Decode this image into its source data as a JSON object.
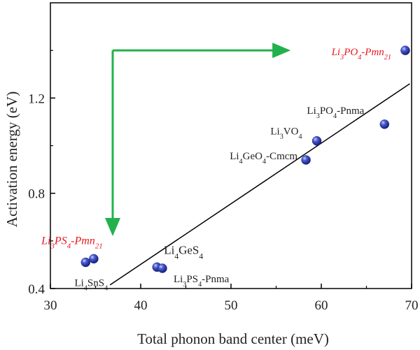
{
  "chart_data": {
    "type": "scatter",
    "xlabel": "Total phonon band center (meV)",
    "ylabel": "Activation energy (eV)",
    "xlim": [
      30,
      70
    ],
    "ylim": [
      0.4,
      1.6
    ],
    "xticks": [
      "30",
      "40",
      "50",
      "60",
      "70"
    ],
    "yticks": [
      "0.4",
      "0.8",
      "1.2"
    ],
    "grid": false,
    "points": [
      {
        "x": 33.9,
        "y": 0.51,
        "label": "Li4SnS4"
      },
      {
        "x": 34.8,
        "y": 0.525,
        "label": "Li3PS4-Pmn21",
        "highlight": true
      },
      {
        "x": 41.8,
        "y": 0.49,
        "label": "Li4GeS4"
      },
      {
        "x": 42.4,
        "y": 0.485,
        "label": "Li3PS4-Pnma"
      },
      {
        "x": 58.3,
        "y": 0.94,
        "label": "Li4GeO4-Cmcm"
      },
      {
        "x": 59.5,
        "y": 1.02,
        "label": "Li3VO4"
      },
      {
        "x": 67.0,
        "y": 1.09,
        "label": "Li3PO4-Pnma"
      },
      {
        "x": 69.3,
        "y": 1.4,
        "label": "Li3PO4-Pmn21",
        "highlight": true
      }
    ],
    "fit_line": {
      "x": [
        36.6,
        69.8
      ],
      "y": [
        0.415,
        1.26
      ]
    },
    "annotation_arrows": {
      "color": "#22b14c",
      "from": {
        "x": 36.9,
        "y": 1.4
      },
      "to_right": {
        "x": 56.6,
        "y": 1.4
      },
      "to_down": {
        "x": 36.9,
        "y": 0.62
      }
    },
    "colors": {
      "marker": "#2b3aa8",
      "highlight_text": "#e8191f",
      "text": "#222222",
      "line": "#000000"
    }
  }
}
